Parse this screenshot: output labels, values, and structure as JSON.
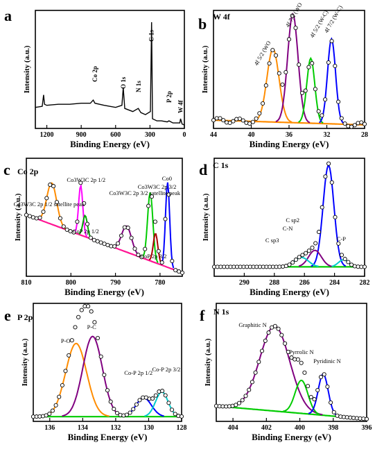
{
  "chart_data": [
    {
      "type": "line",
      "panel": "a",
      "title": "",
      "xlabel": "Binding Energy (eV)",
      "ylabel": "Intensity (a.u.)",
      "xlim": [
        1300,
        0
      ],
      "xticks": [
        "1200",
        "900",
        "600",
        "300",
        "0"
      ],
      "x_ticks_values": [
        1200,
        900,
        600,
        300,
        0
      ],
      "grid": false,
      "annotations": [
        {
          "text": "C 1s",
          "x": 286
        },
        {
          "text": "O 1s",
          "x": 532
        },
        {
          "text": "N 1s",
          "x": 400
        },
        {
          "text": "Co 2p",
          "x": 780
        },
        {
          "text": "P 2p",
          "x": 133
        },
        {
          "text": "W 4f",
          "x": 33
        }
      ],
      "series": [
        {
          "type": "survey",
          "color": "#000000",
          "x": [
            1300,
            1240,
            1228,
            1220,
            1200,
            1100,
            1000,
            900,
            820,
            795,
            780,
            700,
            600,
            545,
            533,
            520,
            450,
            402,
            380,
            340,
            296,
            286,
            278,
            240,
            200,
            150,
            134,
            100,
            40,
            33,
            20,
            0
          ],
          "y": [
            0.18,
            0.19,
            0.3,
            0.21,
            0.2,
            0.21,
            0.21,
            0.22,
            0.22,
            0.25,
            0.22,
            0.2,
            0.18,
            0.2,
            0.37,
            0.17,
            0.14,
            0.17,
            0.13,
            0.11,
            0.14,
            1.0,
            0.07,
            0.05,
            0.05,
            0.04,
            0.05,
            0.03,
            0.03,
            0.07,
            0.02,
            0.01
          ]
        }
      ]
    },
    {
      "type": "line",
      "panel": "b",
      "title": "W 4f",
      "xlabel": "Binding Energy (eV)",
      "ylabel": "Intensity (a.u.)",
      "xlim": [
        44,
        28
      ],
      "xticks": [
        "44",
        "40",
        "36",
        "32",
        "28"
      ],
      "x_ticks_values": [
        44,
        40,
        36,
        32,
        28
      ],
      "grid": false,
      "annotations": [
        {
          "text": "4f 5/2 (WO",
          "x": 37.6
        },
        {
          "text": "4f 7/2 (WO",
          "x": 35.6
        },
        {
          "text": "4f 5/2 (W-C)",
          "x": 33.6
        },
        {
          "text": "4f 7/2 (W-C)",
          "x": 31.5
        }
      ],
      "series": [
        {
          "type": "background",
          "color": "#ff8c00",
          "x": [
            44,
            28
          ],
          "y": [
            0.07,
            0.03
          ]
        },
        {
          "type": "peak",
          "color": "#ff8c00",
          "center": 37.7,
          "height": 0.62,
          "fwhm": 1.5
        },
        {
          "type": "peak",
          "color": "#800080",
          "center": 35.6,
          "height": 0.92,
          "fwhm": 1.3
        },
        {
          "type": "peak",
          "color": "#00cc00",
          "center": 33.7,
          "height": 0.55,
          "fwhm": 1.0
        },
        {
          "type": "peak",
          "color": "#0000ff",
          "center": 31.5,
          "height": 0.72,
          "fwhm": 1.0
        },
        {
          "type": "data",
          "marker": "open-circle",
          "x": [
            44,
            43.5,
            43,
            42.5,
            42,
            41.5,
            41,
            40.5,
            40,
            39.5,
            39,
            38.5,
            38,
            37.5,
            37,
            36.5,
            36,
            35.5,
            35,
            34.5,
            34,
            33.5,
            33,
            32.5,
            32,
            31.5,
            31,
            30.5,
            30,
            29.5,
            29,
            28.5,
            28
          ]
        }
      ]
    },
    {
      "type": "line",
      "panel": "c",
      "title": "Co 2p",
      "xlabel": "Binding Energy (eV)",
      "ylabel": "Intensity (a.u.)",
      "xlim": [
        810,
        775
      ],
      "xticks": [
        "810",
        "800",
        "790",
        "780"
      ],
      "x_ticks_values": [
        810,
        800,
        790,
        780
      ],
      "grid": false,
      "annotations": [
        {
          "text": "Co3W3C 2p 1/2",
          "x": 797.8
        },
        {
          "text": "Co3W3C 2p 3/2",
          "x": 782.2
        },
        {
          "text": "Co3W3C 2p 3/2 satellite peak",
          "x": 787.5
        },
        {
          "text": "Co0",
          "x": 778.3
        },
        {
          "text": "Co3W3C 2p 1/2 satellite peak",
          "x": 804.3
        },
        {
          "text": "CoP 2p 1/2",
          "x": 796.8
        },
        {
          "text": "CoP 2p 3/2",
          "x": 781.0
        }
      ],
      "series": [
        {
          "type": "background",
          "color": "#ff1493",
          "x": [
            810,
            775
          ],
          "y": [
            0.52,
            0.03
          ]
        },
        {
          "type": "peak",
          "color": "#ff8c00",
          "center": 804.3,
          "height": 0.35,
          "fwhm": 2.6
        },
        {
          "type": "peak",
          "color": "#ff00ff",
          "center": 797.8,
          "height": 0.42,
          "fwhm": 1.1
        },
        {
          "type": "peak",
          "color": "#00aa00",
          "center": 796.8,
          "height": 0.18,
          "fwhm": 1.2
        },
        {
          "type": "peak",
          "color": "#800080",
          "center": 787.5,
          "height": 0.22,
          "fwhm": 2.6
        },
        {
          "type": "peak",
          "color": "#00cc00",
          "center": 782.2,
          "height": 0.58,
          "fwhm": 1.4
        },
        {
          "type": "peak",
          "color": "#aa0000",
          "center": 781.0,
          "height": 0.25,
          "fwhm": 1.2
        },
        {
          "type": "peak",
          "color": "#0000ff",
          "center": 778.3,
          "height": 0.72,
          "fwhm": 1.1
        }
      ]
    },
    {
      "type": "line",
      "panel": "d",
      "title": "C 1s",
      "xlabel": "Binding Energy (eV)",
      "ylabel": "Intensity (a.u.)",
      "xlim": [
        292,
        282
      ],
      "xticks": [
        "290",
        "288",
        "286",
        "284",
        "282"
      ],
      "x_ticks_values": [
        290,
        288,
        286,
        284,
        282
      ],
      "grid": false,
      "annotations": [
        {
          "text": "C sp2",
          "x": 285.3
        },
        {
          "text": "C-N",
          "x": 285.7
        },
        {
          "text": "C sp3",
          "x": 286.2
        },
        {
          "text": "C-P",
          "x": 283.3
        }
      ],
      "series": [
        {
          "type": "background",
          "color": "#00cc00",
          "x": [
            292,
            282
          ],
          "y": [
            0.08,
            0.08
          ]
        },
        {
          "type": "peak",
          "color": "#0000ff",
          "center": 284.4,
          "height": 0.86,
          "fwhm": 0.85
        },
        {
          "type": "peak",
          "color": "#800080",
          "center": 285.3,
          "height": 0.14,
          "fwhm": 1.0
        },
        {
          "type": "peak",
          "color": "#00cccc",
          "center": 286.2,
          "height": 0.08,
          "fwhm": 1.1
        },
        {
          "type": "peak",
          "color": "#00cccc",
          "center": 283.4,
          "height": 0.06,
          "fwhm": 0.8
        }
      ]
    },
    {
      "type": "line",
      "panel": "e",
      "title": "P 2p",
      "xlabel": "Binding Energy (eV)",
      "ylabel": "Intensity (a.u.)",
      "xlim": [
        137,
        128
      ],
      "xticks": [
        "136",
        "134",
        "132",
        "130",
        "128"
      ],
      "x_ticks_values": [
        136,
        134,
        132,
        130,
        128
      ],
      "grid": false,
      "annotations": [
        {
          "text": "P-O",
          "x": 134.4
        },
        {
          "text": "P-C",
          "x": 133.4
        },
        {
          "text": "Co-P 2p 1/2",
          "x": 130.3
        },
        {
          "text": "Co-P 2p 3/2",
          "x": 129.2
        }
      ],
      "series": [
        {
          "type": "background",
          "color": "#00cc00",
          "x": [
            137,
            128
          ],
          "y": [
            0.04,
            0.04
          ]
        },
        {
          "type": "peak",
          "color": "#ff8c00",
          "center": 134.4,
          "height": 0.62,
          "fwhm": 1.5
        },
        {
          "type": "peak",
          "color": "#800080",
          "center": 133.4,
          "height": 0.68,
          "fwhm": 1.4
        },
        {
          "type": "peak",
          "color": "#0000ff",
          "center": 130.3,
          "height": 0.16,
          "fwhm": 1.1
        },
        {
          "type": "peak",
          "color": "#00cccc",
          "center": 129.2,
          "height": 0.21,
          "fwhm": 0.9
        }
      ]
    },
    {
      "type": "line",
      "panel": "f",
      "title": "N 1s",
      "xlabel": "Binding Energy (eV)",
      "ylabel": "Intensity (a.u.)",
      "xlim": [
        405,
        396
      ],
      "xticks": [
        "404",
        "402",
        "400",
        "398",
        "396"
      ],
      "x_ticks_values": [
        404,
        402,
        400,
        398,
        396
      ],
      "grid": false,
      "annotations": [
        {
          "text": "Graphitic N",
          "x": 401.5
        },
        {
          "text": "Pyrrolic N",
          "x": 399.9
        },
        {
          "text": "Pyridinic N",
          "x": 398.6
        }
      ],
      "series": [
        {
          "type": "background",
          "color": "#00cc00",
          "x": [
            405,
            396
          ],
          "y": [
            0.13,
            0.02
          ]
        },
        {
          "type": "peak",
          "color": "#800080",
          "center": 401.5,
          "height": 0.72,
          "fwhm": 2.1
        },
        {
          "type": "peak",
          "color": "#00cc00",
          "center": 399.9,
          "height": 0.28,
          "fwhm": 0.9
        },
        {
          "type": "peak",
          "color": "#0000ff",
          "center": 398.6,
          "height": 0.35,
          "fwhm": 0.7
        }
      ]
    }
  ]
}
